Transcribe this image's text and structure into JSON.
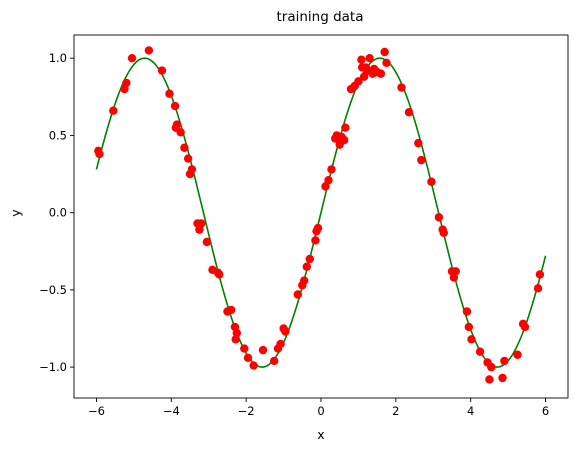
{
  "chart_data": {
    "type": "scatter",
    "title": "training data",
    "xlabel": "x",
    "ylabel": "y",
    "xlim": [
      -6.6,
      6.6
    ],
    "ylim": [
      -1.2,
      1.15
    ],
    "xticks": [
      -6,
      -4,
      -2,
      0,
      2,
      4,
      6
    ],
    "xtick_labels": [
      "−6",
      "−4",
      "−2",
      "0",
      "2",
      "4",
      "6"
    ],
    "yticks": [
      -1.0,
      -0.5,
      0.0,
      0.5,
      1.0
    ],
    "ytick_labels": [
      "−1.0",
      "−0.5",
      "0.0",
      "0.5",
      "1.0"
    ],
    "grid": false,
    "colors": {
      "curve": "#008000",
      "points": "#ff0000",
      "axes": "#000000"
    },
    "series": [
      {
        "kind": "line",
        "x_range": [
          -6,
          6
        ],
        "function": "sin(x)",
        "samples": 241
      },
      {
        "kind": "scatter",
        "x": [
          -5.95,
          -5.92,
          -5.55,
          -5.25,
          -5.2,
          -5.05,
          -4.6,
          -4.25,
          -4.05,
          -3.9,
          -3.88,
          -3.85,
          -3.75,
          -3.65,
          -3.55,
          -3.5,
          -3.45,
          -3.3,
          -3.25,
          -3.2,
          -3.05,
          -2.9,
          -2.75,
          -2.72,
          -2.5,
          -2.4,
          -2.3,
          -2.28,
          -2.25,
          -2.05,
          -1.95,
          -1.8,
          -1.55,
          -1.25,
          -1.15,
          -1.08,
          -1.0,
          -0.95,
          -0.62,
          -0.5,
          -0.45,
          -0.38,
          -0.3,
          -0.15,
          -0.12,
          -0.08,
          0.12,
          0.2,
          0.28,
          0.38,
          0.42,
          0.5,
          0.55,
          0.62,
          0.65,
          0.8,
          0.9,
          1.0,
          1.08,
          1.1,
          1.15,
          1.2,
          1.25,
          1.3,
          1.38,
          1.42,
          1.5,
          1.6,
          1.7,
          1.75,
          2.15,
          2.35,
          2.6,
          2.68,
          2.95,
          3.15,
          3.25,
          3.28,
          3.5,
          3.55,
          3.6,
          3.9,
          3.95,
          4.02,
          4.25,
          4.45,
          4.5,
          4.55,
          4.85,
          4.9,
          5.25,
          5.4,
          5.45,
          5.8,
          5.85
        ],
        "y": [
          0.4,
          0.38,
          0.66,
          0.8,
          0.84,
          1.0,
          1.05,
          0.92,
          0.77,
          0.69,
          0.55,
          0.57,
          0.52,
          0.42,
          0.35,
          0.25,
          0.28,
          -0.07,
          -0.11,
          -0.07,
          -0.19,
          -0.37,
          -0.39,
          -0.4,
          -0.64,
          -0.63,
          -0.74,
          -0.82,
          -0.78,
          -0.88,
          -0.94,
          -0.99,
          -0.89,
          -0.96,
          -0.88,
          -0.85,
          -0.75,
          -0.77,
          -0.53,
          -0.47,
          -0.44,
          -0.35,
          -0.3,
          -0.18,
          -0.12,
          -0.1,
          0.17,
          0.21,
          0.28,
          0.48,
          0.5,
          0.44,
          0.49,
          0.47,
          0.55,
          0.8,
          0.82,
          0.85,
          0.99,
          0.94,
          0.88,
          0.94,
          0.92,
          1.0,
          0.9,
          0.93,
          0.91,
          0.9,
          1.04,
          0.97,
          0.81,
          0.65,
          0.45,
          0.34,
          0.2,
          -0.03,
          -0.11,
          -0.13,
          -0.38,
          -0.42,
          -0.38,
          -0.64,
          -0.74,
          -0.82,
          -0.9,
          -0.97,
          -1.08,
          -1.0,
          -1.07,
          -0.96,
          -0.92,
          -0.72,
          -0.74,
          -0.49,
          -0.4
        ]
      }
    ]
  }
}
